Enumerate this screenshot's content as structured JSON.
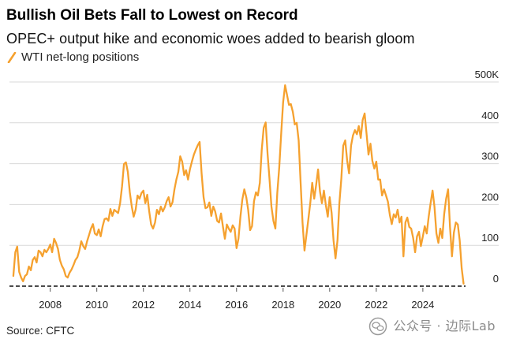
{
  "chart_data": {
    "type": "line",
    "title": "Bullish Oil Bets Fall to Lowest on Record",
    "subtitle": "OPEC+ output hike and economic woes added to bearish gloom",
    "source": "Source: CFTC",
    "legend_position": "top-left",
    "grid": true,
    "xlim": [
      "2006-04",
      "2025-11"
    ],
    "ylim": [
      0,
      500
    ],
    "xticks": [
      "2008",
      "2010",
      "2012",
      "2014",
      "2016",
      "2018",
      "2020",
      "2022",
      "2024"
    ],
    "yticks": [
      0,
      100,
      200,
      300,
      400,
      500
    ],
    "ytick_labels": [
      "0",
      "100",
      "200",
      "300",
      "400",
      "500K"
    ],
    "x": [
      "2006-06",
      "2006-07",
      "2006-08",
      "2006-09",
      "2006-10",
      "2006-11",
      "2006-12",
      "2007-01",
      "2007-02",
      "2007-03",
      "2007-04",
      "2007-05",
      "2007-06",
      "2007-07",
      "2007-08",
      "2007-09",
      "2007-10",
      "2007-11",
      "2007-12",
      "2008-01",
      "2008-02",
      "2008-03",
      "2008-04",
      "2008-05",
      "2008-06",
      "2008-07",
      "2008-08",
      "2008-09",
      "2008-10",
      "2008-11",
      "2008-12",
      "2009-01",
      "2009-02",
      "2009-03",
      "2009-04",
      "2009-05",
      "2009-06",
      "2009-07",
      "2009-08",
      "2009-09",
      "2009-10",
      "2009-11",
      "2009-12",
      "2010-01",
      "2010-02",
      "2010-03",
      "2010-04",
      "2010-05",
      "2010-06",
      "2010-07",
      "2010-08",
      "2010-09",
      "2010-10",
      "2010-11",
      "2010-12",
      "2011-01",
      "2011-02",
      "2011-03",
      "2011-04",
      "2011-05",
      "2011-06",
      "2011-07",
      "2011-08",
      "2011-09",
      "2011-10",
      "2011-11",
      "2011-12",
      "2012-01",
      "2012-02",
      "2012-03",
      "2012-04",
      "2012-05",
      "2012-06",
      "2012-07",
      "2012-08",
      "2012-09",
      "2012-10",
      "2012-11",
      "2012-12",
      "2013-01",
      "2013-02",
      "2013-03",
      "2013-04",
      "2013-05",
      "2013-06",
      "2013-07",
      "2013-08",
      "2013-09",
      "2013-10",
      "2013-11",
      "2013-12",
      "2014-01",
      "2014-02",
      "2014-03",
      "2014-04",
      "2014-05",
      "2014-06",
      "2014-07",
      "2014-08",
      "2014-09",
      "2014-10",
      "2014-11",
      "2014-12",
      "2015-01",
      "2015-02",
      "2015-03",
      "2015-04",
      "2015-05",
      "2015-06",
      "2015-07",
      "2015-08",
      "2015-09",
      "2015-10",
      "2015-11",
      "2015-12",
      "2016-01",
      "2016-02",
      "2016-03",
      "2016-04",
      "2016-05",
      "2016-06",
      "2016-07",
      "2016-08",
      "2016-09",
      "2016-10",
      "2016-11",
      "2016-12",
      "2017-01",
      "2017-02",
      "2017-03",
      "2017-04",
      "2017-05",
      "2017-06",
      "2017-07",
      "2017-08",
      "2017-09",
      "2017-10",
      "2017-11",
      "2017-12",
      "2018-01",
      "2018-02",
      "2018-03",
      "2018-04",
      "2018-05",
      "2018-06",
      "2018-07",
      "2018-08",
      "2018-09",
      "2018-10",
      "2018-11",
      "2018-12",
      "2019-01",
      "2019-02",
      "2019-03",
      "2019-04",
      "2019-05",
      "2019-06",
      "2019-07",
      "2019-08",
      "2019-09",
      "2019-10",
      "2019-11",
      "2019-12",
      "2020-01",
      "2020-02",
      "2020-03",
      "2020-04",
      "2020-05",
      "2020-06",
      "2020-07",
      "2020-08",
      "2020-09",
      "2020-10",
      "2020-11",
      "2020-12",
      "2021-01",
      "2021-02",
      "2021-03",
      "2021-04",
      "2021-05",
      "2021-06",
      "2021-07",
      "2021-08",
      "2021-09",
      "2021-10",
      "2021-11",
      "2021-12",
      "2022-01",
      "2022-02",
      "2022-03",
      "2022-04",
      "2022-05",
      "2022-06",
      "2022-07",
      "2022-08",
      "2022-09",
      "2022-10",
      "2022-11",
      "2022-12",
      "2023-01",
      "2023-02",
      "2023-03",
      "2023-04",
      "2023-05",
      "2023-06",
      "2023-07",
      "2023-08",
      "2023-09",
      "2023-10",
      "2023-11",
      "2023-12",
      "2024-01",
      "2024-02",
      "2024-03",
      "2024-04",
      "2024-05",
      "2024-06",
      "2024-07",
      "2024-08",
      "2024-09",
      "2024-10",
      "2024-11",
      "2024-12",
      "2025-01",
      "2025-02",
      "2025-03",
      "2025-04",
      "2025-05",
      "2025-06",
      "2025-07",
      "2025-08",
      "2025-09",
      "2025-10"
    ],
    "series": [
      {
        "name": "WTI net-long positions",
        "color": "#f5a12f",
        "values": [
          25,
          83,
          97,
          35,
          21,
          12,
          25,
          29,
          48,
          39,
          64,
          71,
          58,
          87,
          83,
          73,
          89,
          83,
          91,
          102,
          83,
          116,
          106,
          91,
          64,
          50,
          41,
          25,
          21,
          33,
          41,
          52,
          64,
          71,
          87,
          110,
          98,
          91,
          110,
          125,
          141,
          152,
          129,
          125,
          139,
          122,
          147,
          164,
          166,
          160,
          189,
          172,
          187,
          183,
          179,
          203,
          245,
          299,
          303,
          280,
          230,
          195,
          170,
          187,
          222,
          214,
          228,
          234,
          203,
          224,
          183,
          151,
          141,
          156,
          187,
          176,
          195,
          183,
          193,
          208,
          218,
          195,
          205,
          237,
          261,
          280,
          318,
          305,
          272,
          284,
          261,
          286,
          305,
          322,
          334,
          345,
          353,
          276,
          218,
          191,
          193,
          205,
          172,
          195,
          183,
          160,
          156,
          178,
          145,
          116,
          151,
          141,
          133,
          149,
          141,
          93,
          116,
          170,
          212,
          237,
          218,
          187,
          137,
          147,
          208,
          230,
          222,
          253,
          334,
          388,
          401,
          324,
          261,
          195,
          160,
          141,
          228,
          291,
          372,
          450,
          492,
          469,
          444,
          446,
          427,
          396,
          400,
          357,
          257,
          156,
          87,
          125,
          164,
          203,
          253,
          214,
          247,
          286,
          232,
          203,
          234,
          199,
          170,
          218,
          179,
          112,
          68,
          112,
          203,
          264,
          344,
          357,
          307,
          276,
          344,
          369,
          382,
          372,
          392,
          363,
          407,
          423,
          372,
          322,
          349,
          307,
          288,
          305,
          261,
          261,
          222,
          237,
          222,
          207,
          174,
          152,
          176,
          168,
          187,
          156,
          170,
          73,
          156,
          168,
          145,
          141,
          118,
          83,
          122,
          133,
          98,
          122,
          147,
          129,
          170,
          203,
          234,
          195,
          129,
          106,
          141,
          118,
          176,
          214,
          237,
          145,
          73,
          131,
          156,
          151,
          112,
          44,
          6
        ]
      }
    ]
  },
  "watermark": {
    "icon": "wechat-icon",
    "text": "公众号 · 边际Lab"
  }
}
